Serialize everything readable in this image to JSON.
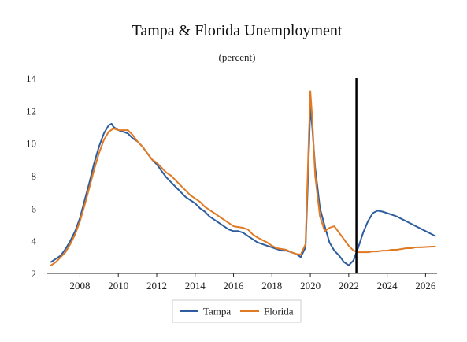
{
  "chart_data": {
    "type": "line",
    "title": "Tampa & Florida Unemployment",
    "subtitle": "(percent)",
    "xlabel": "",
    "ylabel": "",
    "xlim": [
      2006.3,
      2026.6
    ],
    "ylim": [
      2,
      14
    ],
    "x_ticks": [
      2008,
      2010,
      2012,
      2014,
      2016,
      2018,
      2020,
      2022,
      2024,
      2026
    ],
    "y_ticks": [
      2,
      4,
      6,
      8,
      10,
      12,
      14
    ],
    "grid": false,
    "legend": "bottom",
    "vertical_marker": 2022.4,
    "series": [
      {
        "name": "Tampa",
        "color": "#2e5d9f",
        "x": [
          2006.5,
          2006.75,
          2007,
          2007.25,
          2007.5,
          2007.75,
          2008,
          2008.25,
          2008.5,
          2008.75,
          2009,
          2009.25,
          2009.5,
          2009.65,
          2009.75,
          2010,
          2010.25,
          2010.5,
          2010.75,
          2011,
          2011.25,
          2011.5,
          2011.75,
          2012,
          2012.25,
          2012.5,
          2012.75,
          2013,
          2013.25,
          2013.5,
          2013.75,
          2014,
          2014.25,
          2014.5,
          2014.75,
          2015,
          2015.25,
          2015.5,
          2015.75,
          2016,
          2016.25,
          2016.5,
          2016.75,
          2017,
          2017.25,
          2017.5,
          2017.75,
          2018,
          2018.25,
          2018.5,
          2018.75,
          2019,
          2019.25,
          2019.5,
          2019.75,
          2019.9,
          2020,
          2020.1,
          2020.25,
          2020.5,
          2020.75,
          2021,
          2021.25,
          2021.5,
          2021.75,
          2022,
          2022.25,
          2022.5,
          2022.75,
          2023,
          2023.25,
          2023.5,
          2023.75,
          2024,
          2024.25,
          2024.5,
          2024.75,
          2025,
          2025.25,
          2025.5,
          2025.75,
          2026,
          2026.25,
          2026.5
        ],
        "values": [
          2.7,
          2.9,
          3.1,
          3.5,
          4.0,
          4.6,
          5.4,
          6.5,
          7.6,
          8.8,
          9.8,
          10.6,
          11.1,
          11.2,
          11.0,
          10.8,
          10.7,
          10.6,
          10.3,
          10.1,
          9.8,
          9.4,
          9.0,
          8.7,
          8.3,
          7.9,
          7.6,
          7.3,
          7.0,
          6.7,
          6.5,
          6.3,
          6.0,
          5.8,
          5.5,
          5.3,
          5.1,
          4.9,
          4.7,
          4.6,
          4.6,
          4.5,
          4.3,
          4.1,
          3.9,
          3.8,
          3.7,
          3.6,
          3.5,
          3.4,
          3.4,
          3.3,
          3.2,
          3.0,
          3.6,
          8.5,
          12.3,
          11.0,
          8.5,
          6.0,
          4.9,
          3.9,
          3.4,
          3.1,
          2.7,
          2.5,
          2.8,
          3.6,
          4.5,
          5.2,
          5.7,
          5.85,
          5.8,
          5.7,
          5.6,
          5.5,
          5.35,
          5.2,
          5.05,
          4.9,
          4.75,
          4.6,
          4.45,
          4.3
        ]
      },
      {
        "name": "Florida",
        "color": "#e07a25",
        "x": [
          2006.5,
          2006.75,
          2007,
          2007.25,
          2007.5,
          2007.75,
          2008,
          2008.25,
          2008.5,
          2008.75,
          2009,
          2009.25,
          2009.5,
          2009.75,
          2010,
          2010.25,
          2010.5,
          2010.75,
          2011,
          2011.25,
          2011.5,
          2011.75,
          2012,
          2012.25,
          2012.5,
          2012.75,
          2013,
          2013.25,
          2013.5,
          2013.75,
          2014,
          2014.25,
          2014.5,
          2014.75,
          2015,
          2015.25,
          2015.5,
          2015.75,
          2016,
          2016.25,
          2016.5,
          2016.75,
          2017,
          2017.25,
          2017.5,
          2017.75,
          2018,
          2018.25,
          2018.5,
          2018.75,
          2019,
          2019.25,
          2019.5,
          2019.75,
          2019.9,
          2020,
          2020.1,
          2020.25,
          2020.5,
          2020.75,
          2021,
          2021.25,
          2021.5,
          2021.75,
          2022,
          2022.25,
          2022.5,
          2022.75,
          2023,
          2023.25,
          2023.5,
          2023.75,
          2024,
          2024.25,
          2024.5,
          2024.75,
          2025,
          2025.25,
          2025.5,
          2025.75,
          2026,
          2026.25,
          2026.5
        ],
        "values": [
          2.5,
          2.7,
          3.0,
          3.3,
          3.8,
          4.4,
          5.2,
          6.2,
          7.3,
          8.4,
          9.4,
          10.2,
          10.7,
          10.9,
          10.8,
          10.8,
          10.8,
          10.5,
          10.1,
          9.8,
          9.4,
          9.0,
          8.8,
          8.5,
          8.2,
          8.0,
          7.7,
          7.4,
          7.1,
          6.8,
          6.6,
          6.4,
          6.1,
          5.9,
          5.7,
          5.5,
          5.3,
          5.1,
          4.9,
          4.85,
          4.8,
          4.7,
          4.4,
          4.2,
          4.05,
          3.9,
          3.7,
          3.55,
          3.5,
          3.45,
          3.3,
          3.2,
          3.15,
          3.8,
          9.5,
          13.2,
          11.5,
          8.0,
          5.5,
          4.6,
          4.8,
          4.9,
          4.5,
          4.1,
          3.7,
          3.4,
          3.3,
          3.3,
          3.3,
          3.35,
          3.35,
          3.4,
          3.4,
          3.45,
          3.45,
          3.5,
          3.55,
          3.55,
          3.6,
          3.6,
          3.62,
          3.64,
          3.65
        ]
      }
    ]
  }
}
